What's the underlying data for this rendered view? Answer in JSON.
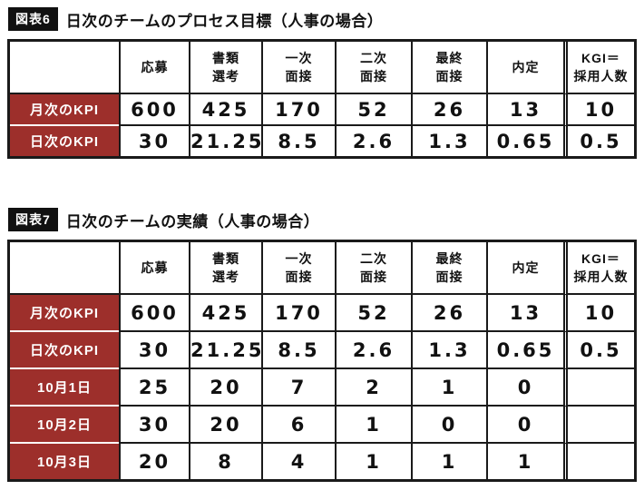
{
  "colors": {
    "row_header_bg": "#9d2f2b",
    "border": "#1a1a1a",
    "tag_bg": "#111111",
    "tag_text": "#ffffff"
  },
  "chart_data": [
    {
      "type": "table",
      "tag": "図表6",
      "title": "日次のチームのプロセス目標（人事の場合）",
      "columns": [
        "",
        "応募",
        "書類\n選考",
        "一次\n面接",
        "二次\n面接",
        "最終\n面接",
        "内定",
        "KGI＝\n採用人数"
      ],
      "rows": [
        {
          "label": "月次のKPI",
          "values": [
            "600",
            "425",
            "170",
            "52",
            "26",
            "13",
            "10"
          ]
        },
        {
          "label": "日次のKPI",
          "values": [
            "30",
            "21.25",
            "8.5",
            "2.6",
            "1.3",
            "0.65",
            "0.5"
          ]
        }
      ]
    },
    {
      "type": "table",
      "tag": "図表7",
      "title": "日次のチームの実績（人事の場合）",
      "columns": [
        "",
        "応募",
        "書類\n選考",
        "一次\n面接",
        "二次\n面接",
        "最終\n面接",
        "内定",
        "KGI＝\n採用人数"
      ],
      "rows": [
        {
          "label": "月次のKPI",
          "values": [
            "600",
            "425",
            "170",
            "52",
            "26",
            "13",
            "10"
          ]
        },
        {
          "label": "日次のKPI",
          "values": [
            "30",
            "21.25",
            "8.5",
            "2.6",
            "1.3",
            "0.65",
            "0.5"
          ]
        },
        {
          "label": "10月1日",
          "values": [
            "25",
            "20",
            "7",
            "2",
            "1",
            "0",
            ""
          ]
        },
        {
          "label": "10月2日",
          "values": [
            "30",
            "20",
            "6",
            "1",
            "0",
            "0",
            ""
          ]
        },
        {
          "label": "10月3日",
          "values": [
            "20",
            "8",
            "4",
            "1",
            "1",
            "1",
            ""
          ]
        }
      ]
    }
  ]
}
